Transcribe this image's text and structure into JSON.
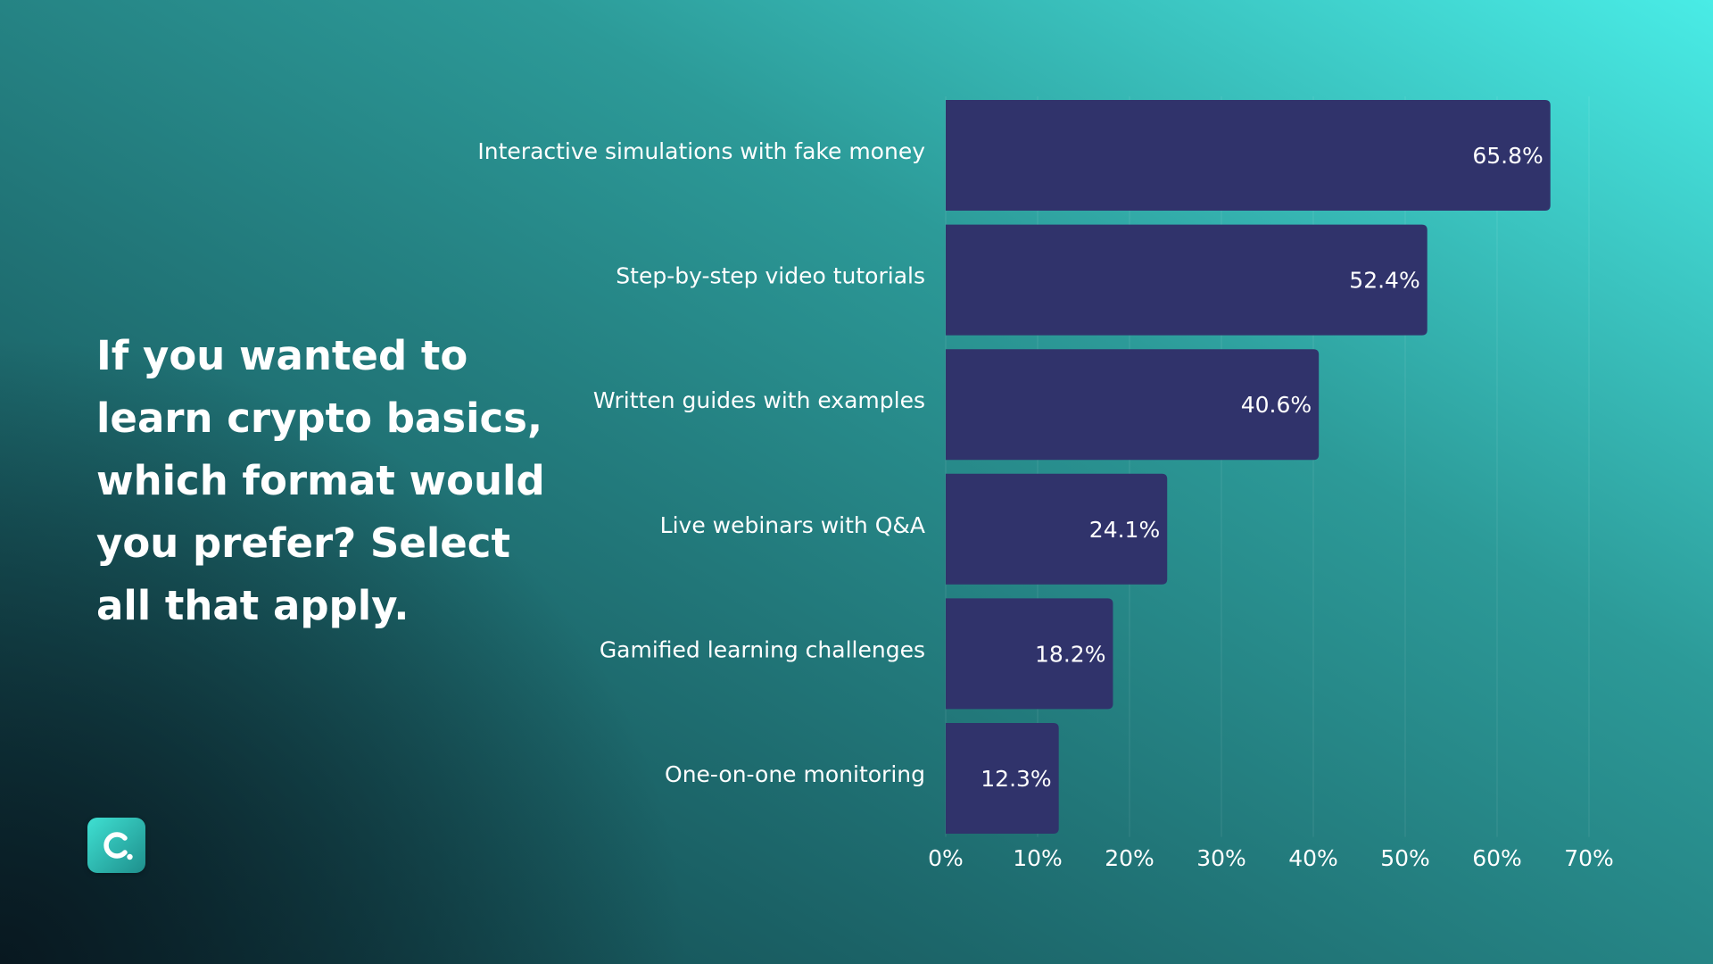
{
  "question": "If you wanted to learn crypto basics, which format would you prefer? Select all that apply.",
  "brand": {
    "logo_icon": "brand-logo-icon",
    "bar_color": "#30336b",
    "text_color": "#ffffff"
  },
  "chart_data": {
    "type": "bar",
    "orientation": "horizontal",
    "title": "",
    "xlabel": "",
    "ylabel": "",
    "categories": [
      "Interactive simulations with fake money",
      "Step-by-step video tutorials",
      "Written guides with examples",
      "Live webinars with Q&A",
      "Gamified learning challenges",
      "One-on-one monitoring"
    ],
    "values": [
      65.8,
      52.4,
      40.6,
      24.1,
      18.2,
      12.3
    ],
    "value_labels": [
      "65.8%",
      "52.4%",
      "40.6%",
      "24.1%",
      "18.2%",
      "12.3%"
    ],
    "xlim": [
      0,
      70
    ],
    "x_ticks": [
      0,
      10,
      20,
      30,
      40,
      50,
      60,
      70
    ],
    "x_tick_labels": [
      "0%",
      "10%",
      "20%",
      "30%",
      "40%",
      "50%",
      "60%",
      "70%"
    ],
    "grid": true
  }
}
